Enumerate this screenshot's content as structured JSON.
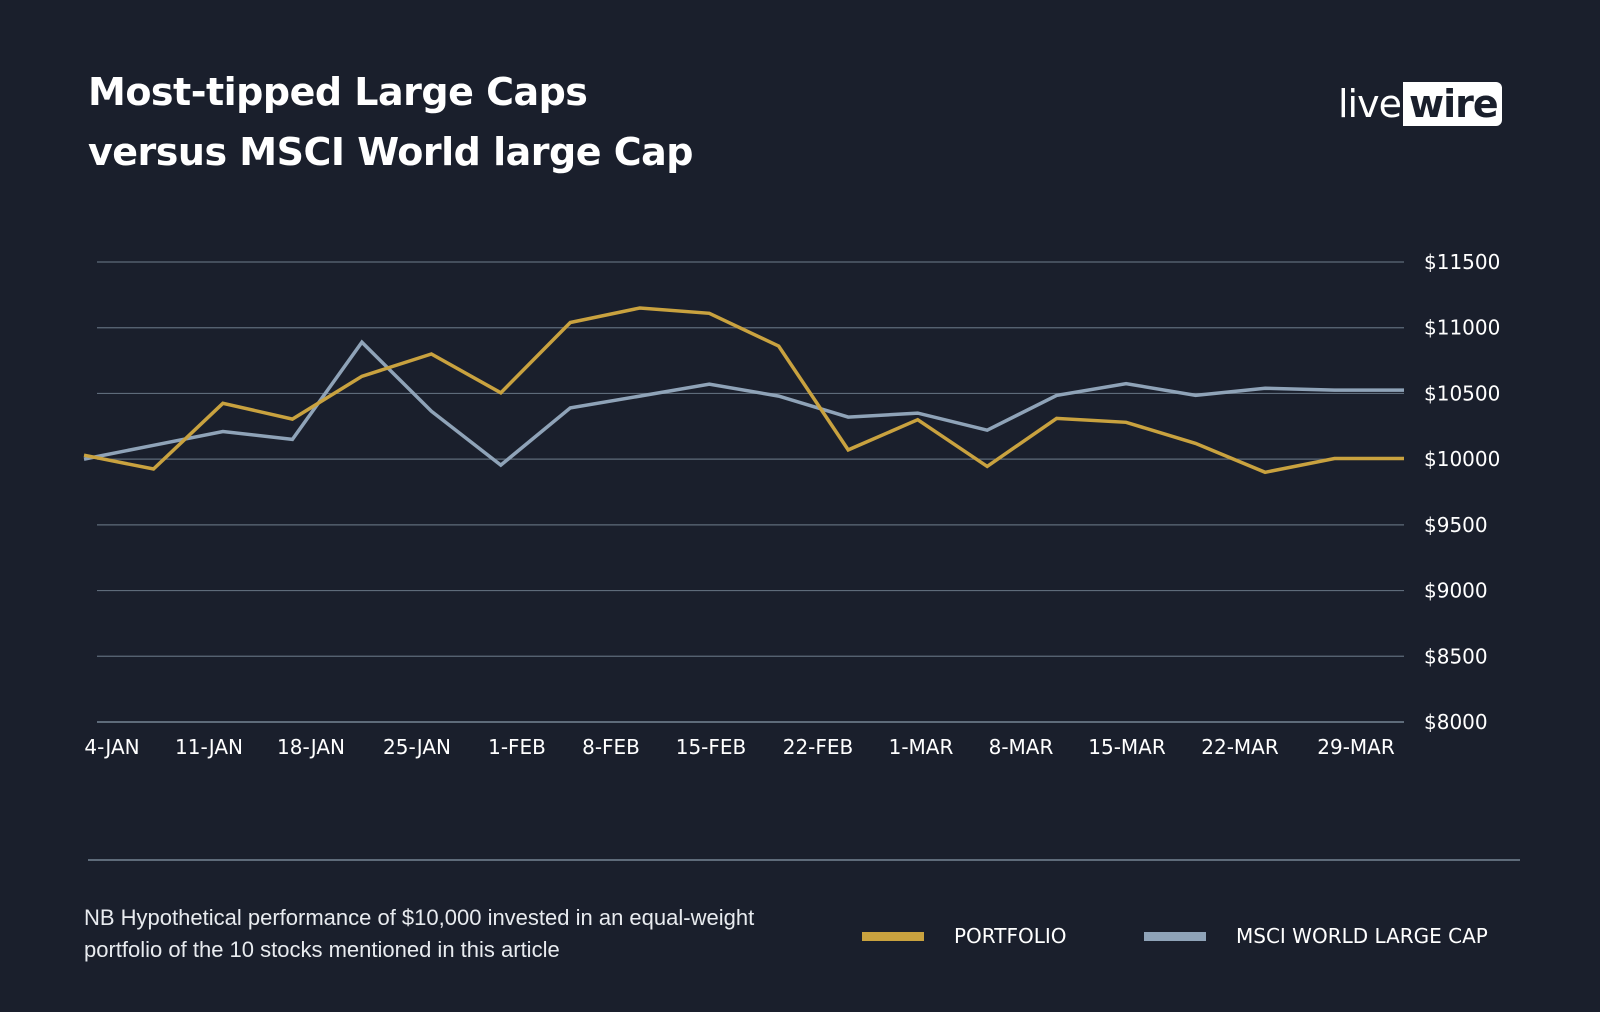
{
  "title_lines": [
    "Most-tipped Large Caps",
    "versus MSCI World large Cap"
  ],
  "logo": {
    "part1": "live",
    "part2": "wire"
  },
  "note": "NB Hypothetical performance of $10,000 invested in an equal-weight portfolio of the 10 stocks mentioned in this article",
  "colors": {
    "background": "#1a1f2c",
    "portfolio": "#c9a23f",
    "msci": "#8fa3b8",
    "grid": "#5e6b7a",
    "text": "#ffffff"
  },
  "legend": [
    {
      "label": "PORTFOLIO",
      "color": "#c9a23f"
    },
    {
      "label": "MSCI WORLD LARGE CAP",
      "color": "#8fa3b8"
    }
  ],
  "chart_data": {
    "type": "line",
    "title": "Most-tipped Large Caps versus MSCI World large Cap",
    "xlabel": "",
    "ylabel": "",
    "ylim": [
      8000,
      11500
    ],
    "yticks": [
      11500,
      11000,
      10500,
      10000,
      9500,
      9000,
      8500,
      8000
    ],
    "ytick_labels": [
      "$11500",
      "$11000",
      "$10500",
      "$10000",
      "$9500",
      "$9000",
      "$8500",
      "$8000"
    ],
    "y_axis_side": "right",
    "grid": true,
    "legend_position": "bottom-right",
    "x_tick_labels": [
      "4-JAN",
      "11-JAN",
      "18-JAN",
      "25-JAN",
      "1-FEB",
      "8-FEB",
      "15-FEB",
      "22-FEB",
      "1-MAR",
      "8-MAR",
      "15-MAR",
      "22-MAR",
      "29-MAR"
    ],
    "n_points": 20,
    "series": [
      {
        "name": "PORTFOLIO",
        "color": "#c9a23f",
        "values": [
          10030,
          9925,
          10425,
          10305,
          10630,
          10800,
          10505,
          11040,
          11150,
          11110,
          10860,
          10070,
          10300,
          9945,
          10310,
          10280,
          10120,
          9900,
          10005,
          10005
        ]
      },
      {
        "name": "MSCI WORLD LARGE CAP",
        "color": "#8fa3b8",
        "values": [
          10000,
          10105,
          10210,
          10150,
          10890,
          10365,
          9955,
          10390,
          10480,
          10570,
          10480,
          10320,
          10350,
          10220,
          10485,
          10575,
          10485,
          10540,
          10525,
          10525
        ]
      }
    ]
  }
}
